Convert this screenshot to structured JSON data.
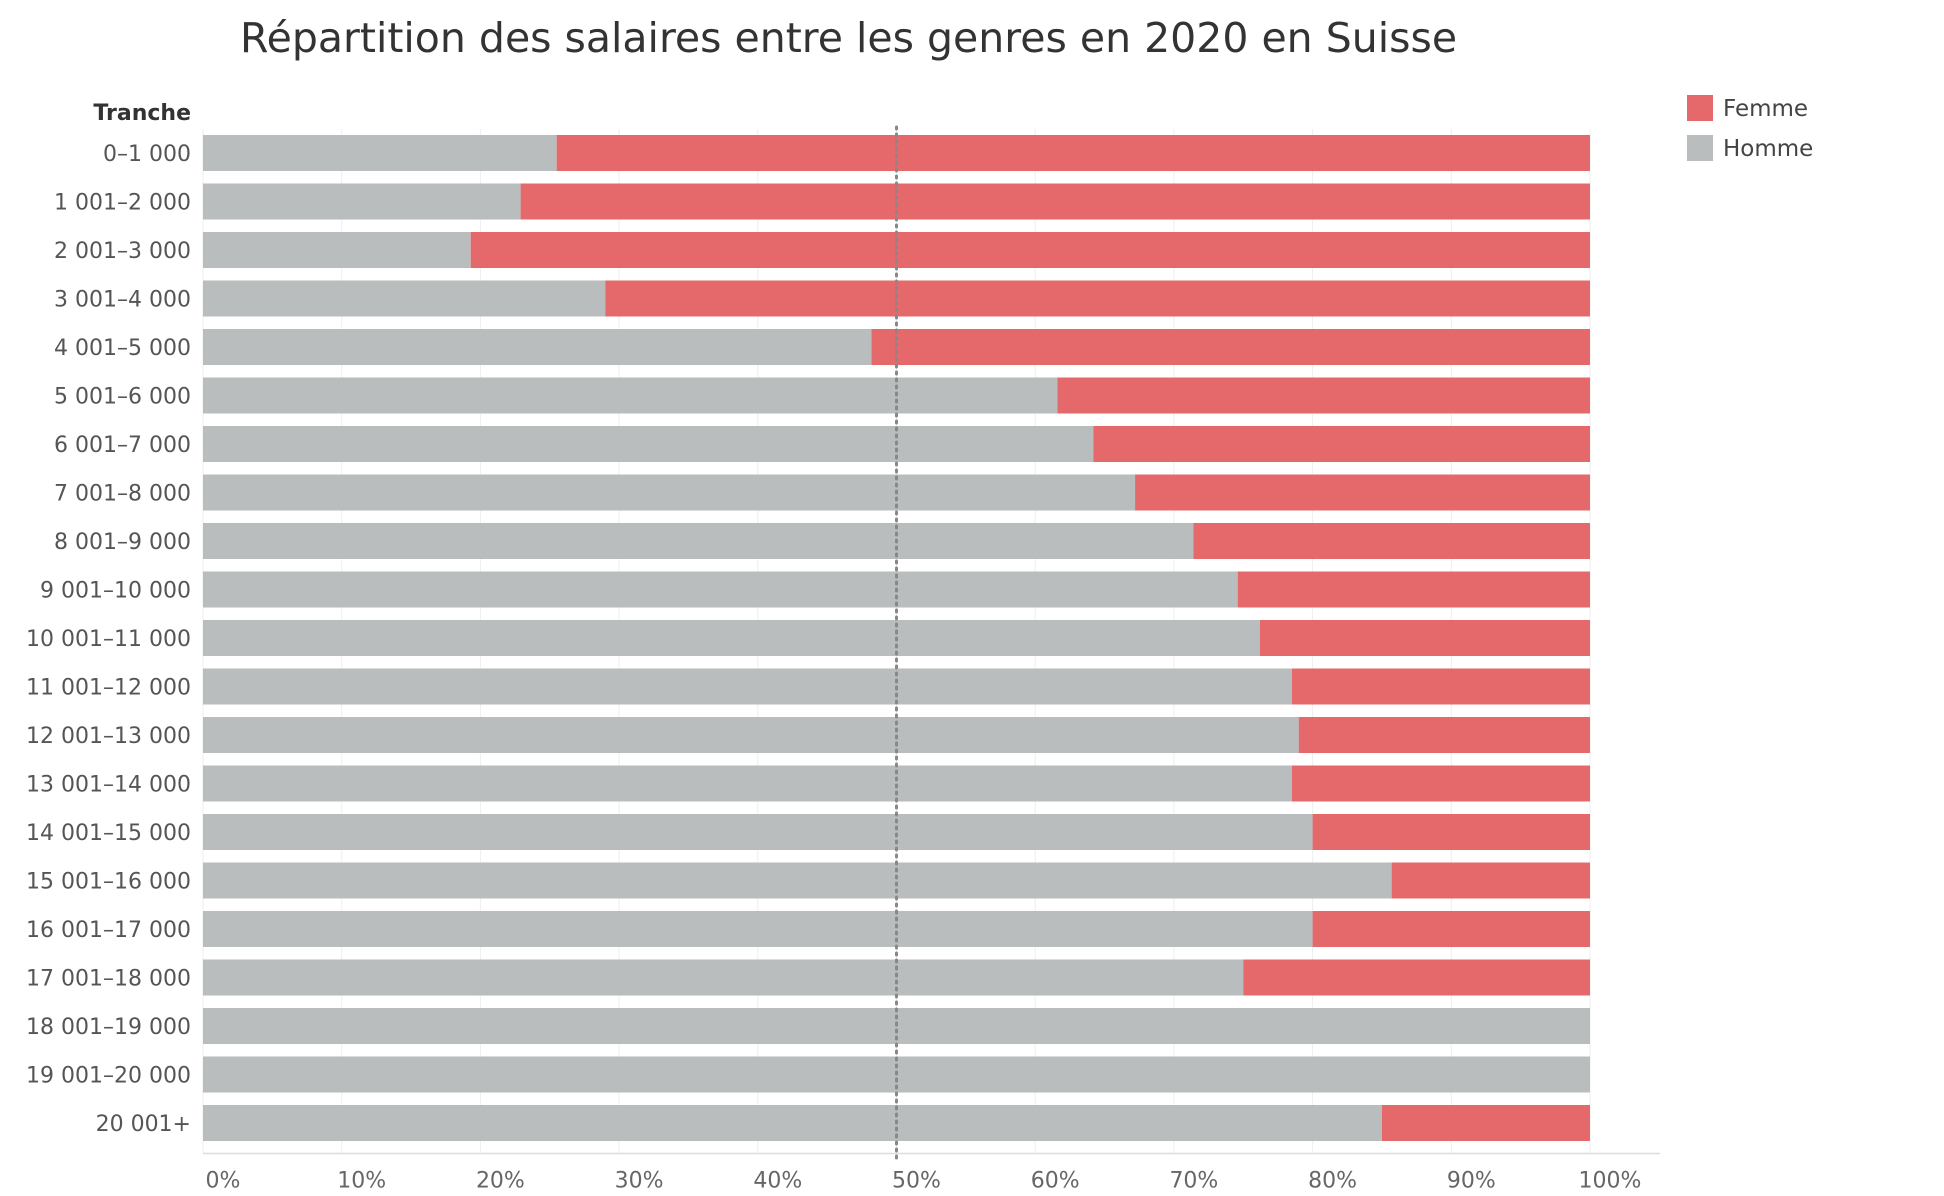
{
  "chart_data": {
    "type": "bar",
    "orientation": "horizontal",
    "stacked": "percent",
    "title": "Répartition des salaires entre les genres en 2020 en Suisse",
    "category_header": "Tranche",
    "categories": [
      "0–1 000",
      "1 001–2 000",
      "2 001–3 000",
      "3 001–4 000",
      "4 001–5 000",
      "5 001–6 000",
      "6 001–7 000",
      "7 001–8 000",
      "8 001–9 000",
      "9 001–10 000",
      "10 001–11 000",
      "11 001–12 000",
      "12 001–13 000",
      "13 001–14 000",
      "14 001–15 000",
      "15 001–16 000",
      "16 001–17 000",
      "17 001–18 000",
      "18 001–19 000",
      "19 001–20 000",
      "20 001+"
    ],
    "series": [
      {
        "name": "Homme",
        "color": "#babdbe",
        "values": [
          25.5,
          22.9,
          19.3,
          29.0,
          48.2,
          61.6,
          64.2,
          67.2,
          71.4,
          74.6,
          76.2,
          78.5,
          79.0,
          78.5,
          80.0,
          85.7,
          80.0,
          75.0,
          100.0,
          100.0,
          85.0
        ]
      },
      {
        "name": "Femme",
        "color": "#e5686b",
        "values": [
          74.5,
          77.1,
          80.7,
          71.0,
          51.8,
          38.4,
          35.8,
          32.8,
          28.6,
          25.4,
          23.8,
          21.5,
          21.0,
          21.5,
          20.0,
          14.3,
          20.0,
          25.0,
          0.0,
          0.0,
          15.0
        ]
      }
    ],
    "x_ticks": [
      "0%",
      "10%",
      "20%",
      "30%",
      "40%",
      "50%",
      "60%",
      "70%",
      "80%",
      "90%",
      "100%"
    ],
    "xlim": [
      0,
      100
    ],
    "reference_line": 50,
    "grid": "vertical",
    "legend": {
      "position": "top-right",
      "order": [
        "Femme",
        "Homme"
      ]
    }
  }
}
